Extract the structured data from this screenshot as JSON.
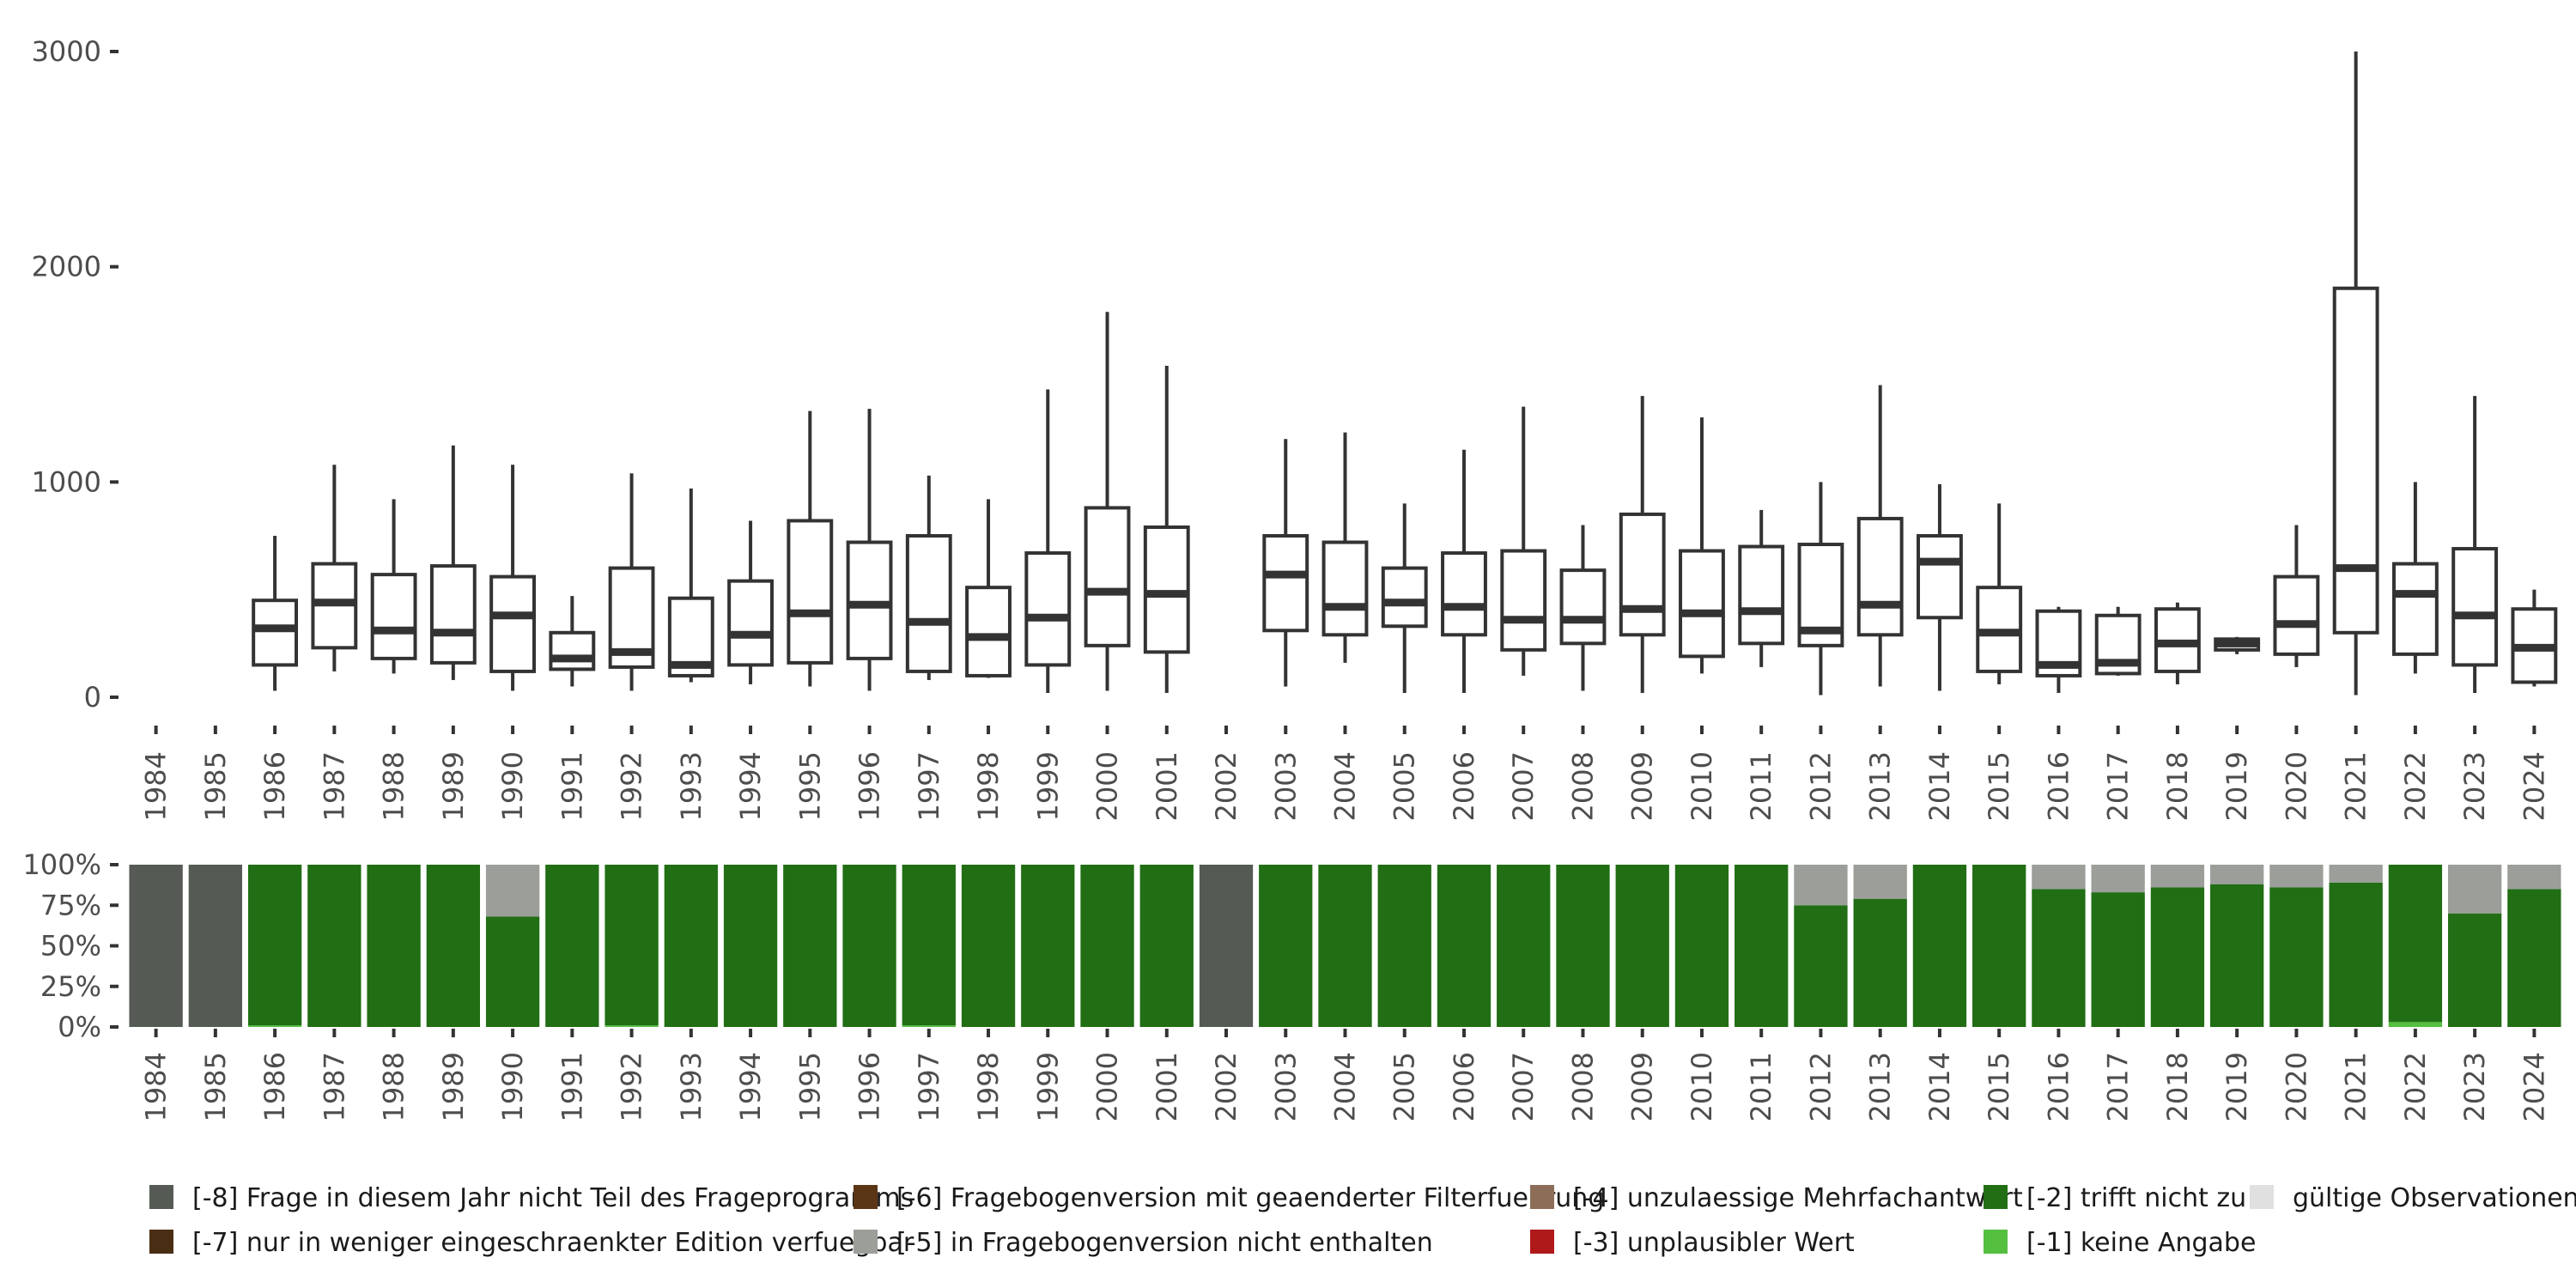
{
  "chart_data": [
    {
      "type": "boxplot",
      "title": "",
      "xlabel": "",
      "ylabel": "",
      "ylim": [
        0,
        3000
      ],
      "yticks": [
        0,
        1000,
        2000,
        3000
      ],
      "categories": [
        "1984",
        "1985",
        "1986",
        "1987",
        "1988",
        "1989",
        "1990",
        "1991",
        "1992",
        "1993",
        "1994",
        "1995",
        "1996",
        "1997",
        "1998",
        "1999",
        "2000",
        "2001",
        "2002",
        "2003",
        "2004",
        "2005",
        "2006",
        "2007",
        "2008",
        "2009",
        "2010",
        "2011",
        "2012",
        "2013",
        "2014",
        "2015",
        "2016",
        "2017",
        "2018",
        "2019",
        "2020",
        "2021",
        "2022",
        "2023",
        "2024"
      ],
      "boxes": [
        null,
        null,
        {
          "min": 30,
          "q1": 150,
          "median": 320,
          "q3": 450,
          "max": 750
        },
        {
          "min": 120,
          "q1": 230,
          "median": 440,
          "q3": 620,
          "max": 1080
        },
        {
          "min": 110,
          "q1": 180,
          "median": 310,
          "q3": 570,
          "max": 920
        },
        {
          "min": 80,
          "q1": 160,
          "median": 300,
          "q3": 610,
          "max": 1170
        },
        {
          "min": 30,
          "q1": 120,
          "median": 380,
          "q3": 560,
          "max": 1080
        },
        {
          "min": 50,
          "q1": 130,
          "median": 180,
          "q3": 300,
          "max": 470
        },
        {
          "min": 30,
          "q1": 140,
          "median": 210,
          "q3": 600,
          "max": 1040
        },
        {
          "min": 70,
          "q1": 100,
          "median": 150,
          "q3": 460,
          "max": 970
        },
        {
          "min": 60,
          "q1": 150,
          "median": 290,
          "q3": 540,
          "max": 820
        },
        {
          "min": 50,
          "q1": 160,
          "median": 390,
          "q3": 820,
          "max": 1330
        },
        {
          "min": 30,
          "q1": 180,
          "median": 430,
          "q3": 720,
          "max": 1340
        },
        {
          "min": 80,
          "q1": 120,
          "median": 350,
          "q3": 750,
          "max": 1030
        },
        {
          "min": 90,
          "q1": 100,
          "median": 280,
          "q3": 510,
          "max": 920
        },
        {
          "min": 20,
          "q1": 150,
          "median": 370,
          "q3": 670,
          "max": 1430
        },
        {
          "min": 30,
          "q1": 240,
          "median": 490,
          "q3": 880,
          "max": 1790
        },
        {
          "min": 20,
          "q1": 210,
          "median": 480,
          "q3": 790,
          "max": 1540
        },
        null,
        {
          "min": 50,
          "q1": 310,
          "median": 570,
          "q3": 750,
          "max": 1200
        },
        {
          "min": 160,
          "q1": 290,
          "median": 420,
          "q3": 720,
          "max": 1230
        },
        {
          "min": 20,
          "q1": 330,
          "median": 440,
          "q3": 600,
          "max": 900
        },
        {
          "min": 20,
          "q1": 290,
          "median": 420,
          "q3": 670,
          "max": 1150
        },
        {
          "min": 100,
          "q1": 220,
          "median": 360,
          "q3": 680,
          "max": 1350
        },
        {
          "min": 30,
          "q1": 250,
          "median": 360,
          "q3": 590,
          "max": 800
        },
        {
          "min": 20,
          "q1": 290,
          "median": 410,
          "q3": 850,
          "max": 1400
        },
        {
          "min": 110,
          "q1": 190,
          "median": 390,
          "q3": 680,
          "max": 1300
        },
        {
          "min": 140,
          "q1": 250,
          "median": 400,
          "q3": 700,
          "max": 870
        },
        {
          "min": 10,
          "q1": 240,
          "median": 310,
          "q3": 710,
          "max": 1000
        },
        {
          "min": 50,
          "q1": 290,
          "median": 430,
          "q3": 830,
          "max": 1450
        },
        {
          "min": 30,
          "q1": 370,
          "median": 630,
          "q3": 750,
          "max": 990
        },
        {
          "min": 60,
          "q1": 120,
          "median": 300,
          "q3": 510,
          "max": 900
        },
        {
          "min": 20,
          "q1": 100,
          "median": 150,
          "q3": 400,
          "max": 420
        },
        {
          "min": 100,
          "q1": 110,
          "median": 160,
          "q3": 380,
          "max": 420
        },
        {
          "min": 60,
          "q1": 120,
          "median": 250,
          "q3": 410,
          "max": 440
        },
        {
          "min": 200,
          "q1": 220,
          "median": 250,
          "q3": 270,
          "max": 280
        },
        {
          "min": 140,
          "q1": 200,
          "median": 340,
          "q3": 560,
          "max": 800
        },
        {
          "min": 10,
          "q1": 300,
          "median": 600,
          "q3": 1900,
          "max": 3000
        },
        {
          "min": 110,
          "q1": 200,
          "median": 480,
          "q3": 620,
          "max": 1000
        },
        {
          "min": 20,
          "q1": 150,
          "median": 380,
          "q3": 690,
          "max": 1400
        },
        {
          "min": 50,
          "q1": 70,
          "median": 230,
          "q3": 410,
          "max": 500
        }
      ]
    },
    {
      "type": "stacked_bar",
      "title": "",
      "xlabel": "",
      "ylabel": "",
      "ylim": [
        0,
        100
      ],
      "yticks": [
        "0%",
        "25%",
        "50%",
        "75%",
        "100%"
      ],
      "categories": [
        "1984",
        "1985",
        "1986",
        "1987",
        "1988",
        "1989",
        "1990",
        "1991",
        "1992",
        "1993",
        "1994",
        "1995",
        "1996",
        "1997",
        "1998",
        "1999",
        "2000",
        "2001",
        "2002",
        "2003",
        "2004",
        "2005",
        "2006",
        "2007",
        "2008",
        "2009",
        "2010",
        "2011",
        "2012",
        "2013",
        "2014",
        "2015",
        "2016",
        "2017",
        "2018",
        "2019",
        "2020",
        "2021",
        "2022",
        "2023",
        "2024"
      ],
      "series": [
        {
          "name": "[-8] Frage in diesem Jahr nicht Teil des Frageprogramms",
          "color": "#555a55",
          "values": [
            100,
            100,
            0,
            0,
            0,
            0,
            0,
            0,
            0,
            0,
            0,
            0,
            0,
            0,
            0,
            0,
            0,
            0,
            100,
            0,
            0,
            0,
            0,
            0,
            0,
            0,
            0,
            0,
            0,
            0,
            0,
            0,
            0,
            0,
            0,
            0,
            0,
            0,
            0,
            0,
            0
          ]
        },
        {
          "name": "[-1] keine Angabe",
          "color": "#55bf40",
          "values": [
            0,
            0,
            1,
            0,
            0,
            0,
            0,
            0,
            1,
            0,
            0,
            0,
            0,
            1,
            0,
            0,
            0,
            0,
            0,
            0,
            0,
            0,
            0,
            0,
            0,
            0,
            0,
            0,
            0,
            0,
            0,
            0,
            0,
            0,
            0,
            0,
            0,
            0,
            3,
            0,
            0
          ]
        },
        {
          "name": "[-2] trifft nicht zu",
          "color": "#216e14",
          "values": [
            0,
            0,
            99,
            100,
            100,
            100,
            68,
            100,
            99,
            100,
            100,
            100,
            100,
            99,
            100,
            100,
            100,
            100,
            0,
            100,
            100,
            100,
            100,
            100,
            100,
            100,
            100,
            100,
            75,
            79,
            100,
            100,
            85,
            83,
            86,
            88,
            86,
            89,
            97,
            70,
            85
          ]
        },
        {
          "name": "[-5] in Fragebogenversion nicht enthalten",
          "color": "#9b9e99",
          "values": [
            0,
            0,
            0,
            0,
            0,
            0,
            32,
            0,
            0,
            0,
            0,
            0,
            0,
            0,
            0,
            0,
            0,
            0,
            0,
            0,
            0,
            0,
            0,
            0,
            0,
            0,
            0,
            0,
            25,
            21,
            0,
            0,
            15,
            17,
            14,
            12,
            14,
            11,
            0,
            30,
            15
          ]
        }
      ]
    }
  ],
  "legend": [
    {
      "label": "[-8] Frage in diesem Jahr nicht Teil des Frageprogramms",
      "color": "#555a55"
    },
    {
      "label": "[-7] nur in weniger eingeschraenkter Edition verfuegbar",
      "color": "#4a2e14"
    },
    {
      "label": "[-6] Fragebogenversion mit geaenderter Filterfuehrung",
      "color": "#5a3516"
    },
    {
      "label": "[-5] in Fragebogenversion nicht enthalten",
      "color": "#9b9e99"
    },
    {
      "label": "[-4] unzulaessige Mehrfachantwort",
      "color": "#8c6e58"
    },
    {
      "label": "[-3] unplausibler Wert",
      "color": "#b0191a"
    },
    {
      "label": "[-2] trifft nicht zu",
      "color": "#216e14"
    },
    {
      "label": "[-1] keine Angabe",
      "color": "#55bf40"
    },
    {
      "label": "gültige Observationen",
      "color": "#e0e0e0"
    }
  ]
}
